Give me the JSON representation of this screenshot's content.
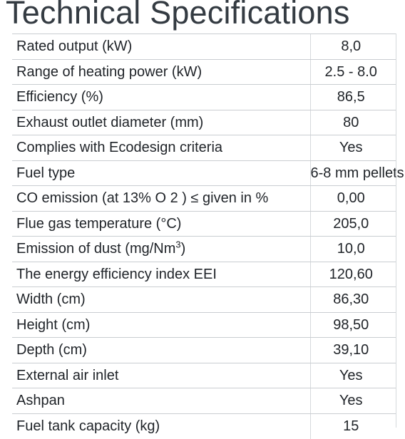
{
  "title": "Technical Specifications",
  "rows": [
    {
      "label": "Rated output (kW)",
      "value": "8,0"
    },
    {
      "label": "Range of heating power (kW)",
      "value": "2.5 - 8.0"
    },
    {
      "label": "Efficiency (%)",
      "value": "86,5"
    },
    {
      "label": "Exhaust outlet diameter (mm)",
      "value": "80"
    },
    {
      "label": "Complies with Ecodesign criteria",
      "value": "Yes"
    },
    {
      "label": "Fuel type",
      "value": "6-8 mm pellets"
    },
    {
      "label": "CO emission (at 13% O 2 ) ≤ given in %",
      "value": "0,00"
    },
    {
      "label": "Flue gas temperature (°C)",
      "value": "205,0"
    },
    {
      "label": "Emission of dust (mg/Nm",
      "label_sup": "3",
      "label_suffix": ")",
      "value": "10,0"
    },
    {
      "label": "The energy efficiency index EEI",
      "value": "120,60"
    },
    {
      "label": "Width (cm)",
      "value": "86,30"
    },
    {
      "label": "Height (cm)",
      "value": "98,50"
    },
    {
      "label": "Depth (cm)",
      "value": "39,10"
    },
    {
      "label": "External air inlet",
      "value": "Yes"
    },
    {
      "label": "Ashpan",
      "value": "Yes"
    },
    {
      "label": "Fuel tank capacity (kg)",
      "value": "15"
    }
  ]
}
